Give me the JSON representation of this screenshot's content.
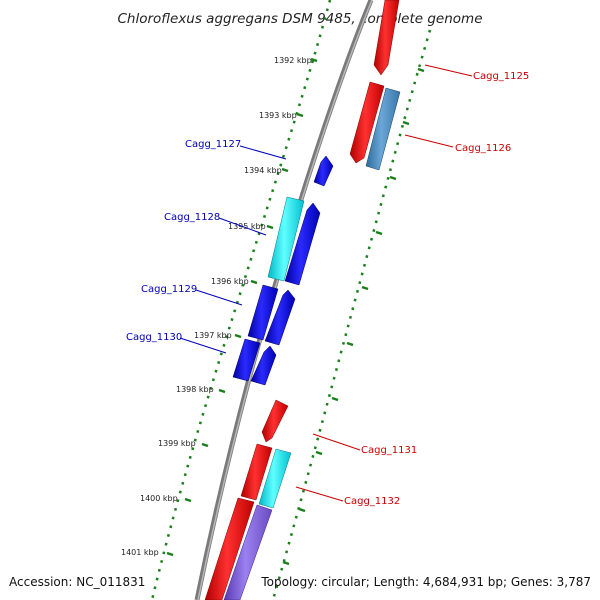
{
  "title": "Chloroflexus aggregans DSM 9485, complete genome",
  "footer": {
    "accession": "Accession: NC_011831",
    "topology": "Topology: circular; Length: 4,684,931 bp; Genes: 3,787"
  },
  "ruler": [
    "1392 kbp",
    "1393 kbp",
    "1394 kbp",
    "1395 kbp",
    "1396 kbp",
    "1397 kbp",
    "1398 kbp",
    "1399 kbp",
    "1400 kbp",
    "1401 kbp"
  ],
  "genes": [
    {
      "label": "Cagg_1125",
      "color": "#cc0000"
    },
    {
      "label": "Cagg_1126",
      "color": "#cc0000"
    },
    {
      "label": "Cagg_1127",
      "color": "#0000bb"
    },
    {
      "label": "Cagg_1128",
      "color": "#0000bb"
    },
    {
      "label": "Cagg_1129",
      "color": "#0000bb"
    },
    {
      "label": "Cagg_1130",
      "color": "#0000bb"
    },
    {
      "label": "Cagg_1131",
      "color": "#cc0000"
    },
    {
      "label": "Cagg_1132",
      "color": "#cc0000"
    }
  ],
  "colors": {
    "red": "#ff0000",
    "blue": "#0000e0",
    "cyan": "#00e8e8",
    "steel": "#4a86b8",
    "purple": "#7a5ad0",
    "backbone": "#888888",
    "ruler": "#1a7f1a"
  }
}
